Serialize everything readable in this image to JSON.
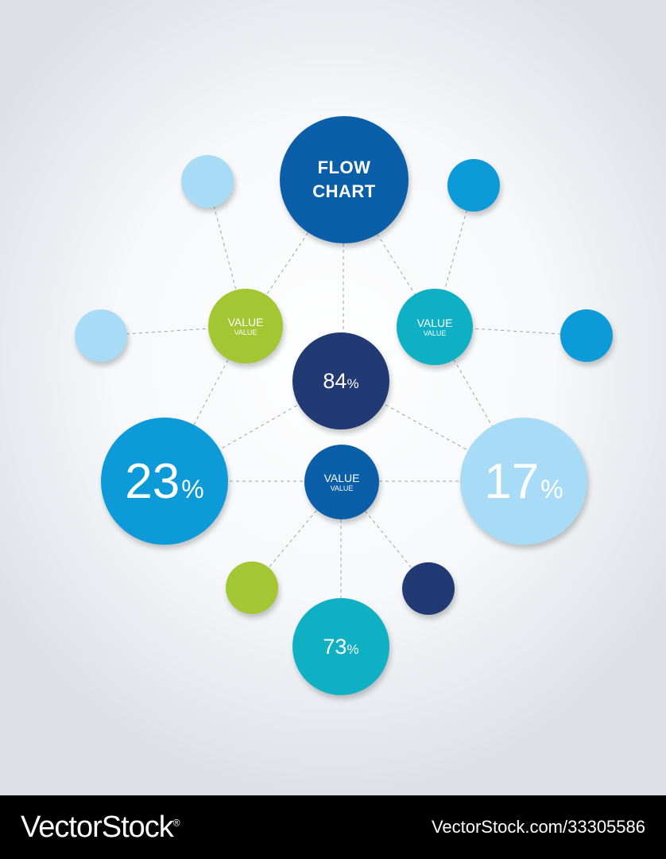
{
  "diagram": {
    "title": {
      "line1": "FLOW",
      "line2": "CHART"
    },
    "center_value": {
      "number": "84",
      "unit": "%"
    },
    "left_value": {
      "main": "VALUE",
      "sub": "VALUE"
    },
    "right_value": {
      "main": "VALUE",
      "sub": "VALUE"
    },
    "lower_value": {
      "main": "VALUE",
      "sub": "VALUE"
    },
    "left_big": {
      "number": "23",
      "unit": "%"
    },
    "right_big": {
      "number": "17",
      "unit": "%"
    },
    "bottom_value": {
      "number": "73",
      "unit": "%"
    },
    "colors": {
      "dark_blue": "#0b5ea8",
      "navy": "#223a73",
      "sky_blue": "#0c9ad9",
      "light_blue": "#a8dcf6",
      "teal": "#0fb0c4",
      "green": "#a3c632"
    }
  },
  "footer": {
    "logo": "VectorStock",
    "registered": "®",
    "image_id": "VectorStock.com/33305586"
  }
}
